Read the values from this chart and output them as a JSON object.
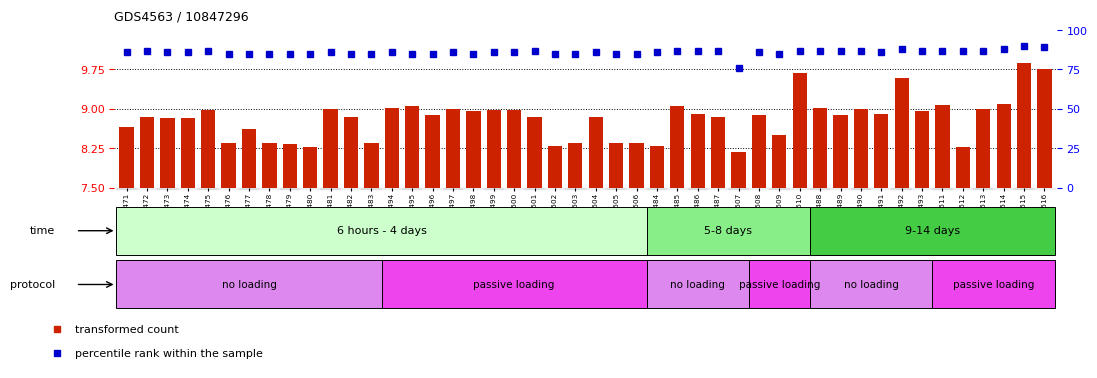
{
  "title": "GDS4563 / 10847296",
  "samples": [
    "GSM930471",
    "GSM930472",
    "GSM930473",
    "GSM930474",
    "GSM930475",
    "GSM930476",
    "GSM930477",
    "GSM930478",
    "GSM930479",
    "GSM930480",
    "GSM930481",
    "GSM930482",
    "GSM930483",
    "GSM930494",
    "GSM930495",
    "GSM930496",
    "GSM930497",
    "GSM930498",
    "GSM930499",
    "GSM930500",
    "GSM930501",
    "GSM930502",
    "GSM930503",
    "GSM930504",
    "GSM930505",
    "GSM930506",
    "GSM930484",
    "GSM930485",
    "GSM930486",
    "GSM930487",
    "GSM930507",
    "GSM930508",
    "GSM930509",
    "GSM930510",
    "GSM930488",
    "GSM930489",
    "GSM930490",
    "GSM930491",
    "GSM930492",
    "GSM930493",
    "GSM930511",
    "GSM930512",
    "GSM930513",
    "GSM930514",
    "GSM930515",
    "GSM930516"
  ],
  "bar_values": [
    8.65,
    8.85,
    8.82,
    8.83,
    8.97,
    8.35,
    8.62,
    8.35,
    8.32,
    8.28,
    9.0,
    8.85,
    8.35,
    9.01,
    9.06,
    8.88,
    9.0,
    8.95,
    8.97,
    8.97,
    8.85,
    8.3,
    8.35,
    8.85,
    8.35,
    8.35,
    8.3,
    9.05,
    8.9,
    8.85,
    8.18,
    8.88,
    8.5,
    9.68,
    9.01,
    8.88,
    9.0,
    8.9,
    9.58,
    8.95,
    9.08,
    8.28,
    9.0,
    9.1,
    9.88,
    9.75
  ],
  "percentile_pct": [
    86,
    87,
    86,
    86,
    87,
    85,
    85,
    85,
    85,
    85,
    86,
    85,
    85,
    86,
    85,
    85,
    86,
    85,
    86,
    86,
    87,
    85,
    85,
    86,
    85,
    85,
    86,
    87,
    87,
    87,
    76,
    86,
    85,
    87,
    87,
    87,
    87,
    86,
    88,
    87,
    87,
    87,
    87,
    88,
    90,
    89
  ],
  "bar_bottom": 7.5,
  "ylim_left": [
    7.5,
    10.5
  ],
  "ylim_right": [
    0,
    100
  ],
  "yticks_left": [
    7.5,
    8.25,
    9.0,
    9.75
  ],
  "yticks_right": [
    0,
    25,
    50,
    75,
    100
  ],
  "bar_color": "#cc2200",
  "dot_color": "#0000cc",
  "gridline_color": "#000000",
  "background_color": "#ffffff",
  "time_groups": [
    {
      "label": "6 hours - 4 days",
      "start": 0,
      "end": 26,
      "color": "#ccffcc"
    },
    {
      "label": "5-8 days",
      "start": 26,
      "end": 34,
      "color": "#88ee88"
    },
    {
      "label": "9-14 days",
      "start": 34,
      "end": 46,
      "color": "#44cc44"
    }
  ],
  "protocol_groups": [
    {
      "label": "no loading",
      "start": 0,
      "end": 13,
      "color": "#dd88ee"
    },
    {
      "label": "passive loading",
      "start": 13,
      "end": 26,
      "color": "#ee44ee"
    },
    {
      "label": "no loading",
      "start": 26,
      "end": 31,
      "color": "#dd88ee"
    },
    {
      "label": "passive loading",
      "start": 31,
      "end": 34,
      "color": "#ee44ee"
    },
    {
      "label": "no loading",
      "start": 34,
      "end": 40,
      "color": "#dd88ee"
    },
    {
      "label": "passive loading",
      "start": 40,
      "end": 46,
      "color": "#ee44ee"
    }
  ],
  "legend_items": [
    {
      "label": "transformed count",
      "color": "#cc2200"
    },
    {
      "label": "percentile rank within the sample",
      "color": "#0000cc"
    }
  ]
}
